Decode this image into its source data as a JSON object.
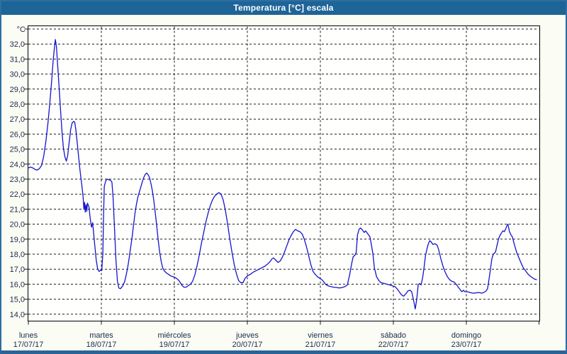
{
  "window": {
    "title": "Temperatura [°C] escala"
  },
  "colors": {
    "titlebar_bg": "#1d6497",
    "titlebar_text": "#ffffff",
    "window_bg": "#fbfcf4",
    "window_border": "#2e6da4",
    "plot_bg": "#fffffe",
    "plot_border": "#000000",
    "grid": "#1a1a1a",
    "axis_text": "#1c2b4a",
    "line": "#1414cc"
  },
  "chart_data": {
    "type": "line",
    "title": "Temperatura [°C] escala",
    "grid": "dashed",
    "legend": "none",
    "y_axis": {
      "unit": "°C",
      "unlabeled_top_gridline": 33,
      "tick_labels": [
        {
          "value": 32,
          "label": "32,0"
        },
        {
          "value": 31,
          "label": "31,0"
        },
        {
          "value": 30,
          "label": "30,0"
        },
        {
          "value": 29,
          "label": "29,0"
        },
        {
          "value": 28,
          "label": "28,0"
        },
        {
          "value": 27,
          "label": "27,0"
        },
        {
          "value": 26,
          "label": "26,0"
        },
        {
          "value": 25,
          "label": "25,0"
        },
        {
          "value": 24,
          "label": "24,0"
        },
        {
          "value": 23,
          "label": "23,0"
        },
        {
          "value": 22,
          "label": "22,0"
        },
        {
          "value": 21,
          "label": "21,0"
        },
        {
          "value": 20,
          "label": "20,0"
        },
        {
          "value": 19,
          "label": "19,0"
        },
        {
          "value": 18,
          "label": "18,0"
        },
        {
          "value": 17,
          "label": "17,0"
        },
        {
          "value": 16,
          "label": "16,0"
        },
        {
          "value": 15,
          "label": "15,0"
        },
        {
          "value": 14,
          "label": "14,0"
        }
      ],
      "range": [
        14,
        33
      ]
    },
    "x_axis": {
      "range_days": [
        0,
        7
      ],
      "days": [
        {
          "name": "lunes",
          "date": "17/07/17"
        },
        {
          "name": "martes",
          "date": "18/07/17"
        },
        {
          "name": "miércoles",
          "date": "19/07/17"
        },
        {
          "name": "jueves",
          "date": "20/07/17"
        },
        {
          "name": "viernes",
          "date": "21/07/17"
        },
        {
          "name": "sábado",
          "date": "22/07/17"
        },
        {
          "name": "domingo",
          "date": "23/07/17"
        }
      ]
    },
    "series": [
      {
        "name": "Temperatura",
        "color": "#1414cc",
        "points": [
          [
            0.0,
            23.75
          ],
          [
            0.03,
            23.8
          ],
          [
            0.06,
            23.75
          ],
          [
            0.09,
            23.65
          ],
          [
            0.12,
            23.6
          ],
          [
            0.15,
            23.7
          ],
          [
            0.18,
            23.9
          ],
          [
            0.21,
            24.5
          ],
          [
            0.24,
            25.5
          ],
          [
            0.27,
            26.8
          ],
          [
            0.3,
            28.4
          ],
          [
            0.32,
            29.6
          ],
          [
            0.34,
            30.9
          ],
          [
            0.36,
            31.9
          ],
          [
            0.37,
            32.3
          ],
          [
            0.385,
            31.8
          ],
          [
            0.4,
            30.7
          ],
          [
            0.42,
            29.2
          ],
          [
            0.44,
            27.7
          ],
          [
            0.46,
            26.2
          ],
          [
            0.48,
            25.1
          ],
          [
            0.5,
            24.5
          ],
          [
            0.52,
            24.2
          ],
          [
            0.54,
            24.6
          ],
          [
            0.56,
            25.5
          ],
          [
            0.58,
            26.3
          ],
          [
            0.6,
            26.75
          ],
          [
            0.62,
            26.85
          ],
          [
            0.635,
            26.8
          ],
          [
            0.65,
            26.3
          ],
          [
            0.67,
            25.4
          ],
          [
            0.69,
            24.4
          ],
          [
            0.71,
            23.5
          ],
          [
            0.73,
            22.7
          ],
          [
            0.75,
            21.8
          ],
          [
            0.76,
            21.0
          ],
          [
            0.77,
            21.45
          ],
          [
            0.78,
            20.8
          ],
          [
            0.79,
            21.3
          ],
          [
            0.8,
            20.85
          ],
          [
            0.81,
            21.4
          ],
          [
            0.83,
            21.15
          ],
          [
            0.85,
            20.3
          ],
          [
            0.865,
            19.8
          ],
          [
            0.88,
            20.1
          ],
          [
            0.89,
            19.6
          ],
          [
            0.91,
            18.6
          ],
          [
            0.93,
            17.6
          ],
          [
            0.95,
            17.0
          ],
          [
            0.97,
            16.85
          ],
          [
            0.99,
            16.95
          ],
          [
            1.005,
            16.9
          ],
          [
            1.02,
            18.0
          ],
          [
            1.03,
            20.5
          ],
          [
            1.04,
            22.5
          ],
          [
            1.06,
            22.9
          ],
          [
            1.08,
            23.0
          ],
          [
            1.11,
            22.95
          ],
          [
            1.13,
            22.9
          ],
          [
            1.145,
            22.8
          ],
          [
            1.16,
            21.8
          ],
          [
            1.18,
            19.8
          ],
          [
            1.2,
            17.6
          ],
          [
            1.22,
            16.2
          ],
          [
            1.24,
            15.75
          ],
          [
            1.26,
            15.7
          ],
          [
            1.28,
            15.8
          ],
          [
            1.3,
            15.95
          ],
          [
            1.32,
            16.2
          ],
          [
            1.34,
            16.6
          ],
          [
            1.36,
            17.1
          ],
          [
            1.38,
            17.7
          ],
          [
            1.4,
            18.4
          ],
          [
            1.42,
            19.1
          ],
          [
            1.44,
            19.9
          ],
          [
            1.46,
            20.7
          ],
          [
            1.48,
            21.3
          ],
          [
            1.5,
            21.8
          ],
          [
            1.53,
            22.3
          ],
          [
            1.56,
            22.8
          ],
          [
            1.58,
            23.1
          ],
          [
            1.6,
            23.3
          ],
          [
            1.62,
            23.4
          ],
          [
            1.64,
            23.3
          ],
          [
            1.66,
            23.1
          ],
          [
            1.68,
            22.7
          ],
          [
            1.7,
            22.2
          ],
          [
            1.72,
            21.5
          ],
          [
            1.74,
            20.7
          ],
          [
            1.76,
            19.8
          ],
          [
            1.78,
            18.9
          ],
          [
            1.8,
            18.1
          ],
          [
            1.82,
            17.5
          ],
          [
            1.84,
            17.1
          ],
          [
            1.86,
            16.9
          ],
          [
            1.89,
            16.75
          ],
          [
            1.92,
            16.65
          ],
          [
            1.95,
            16.55
          ],
          [
            1.98,
            16.5
          ],
          [
            2.01,
            16.45
          ],
          [
            2.04,
            16.35
          ],
          [
            2.07,
            16.2
          ],
          [
            2.1,
            15.95
          ],
          [
            2.13,
            15.8
          ],
          [
            2.16,
            15.8
          ],
          [
            2.19,
            15.9
          ],
          [
            2.22,
            16.0
          ],
          [
            2.25,
            16.2
          ],
          [
            2.28,
            16.6
          ],
          [
            2.31,
            17.2
          ],
          [
            2.34,
            17.9
          ],
          [
            2.37,
            18.7
          ],
          [
            2.4,
            19.4
          ],
          [
            2.43,
            20.1
          ],
          [
            2.46,
            20.7
          ],
          [
            2.49,
            21.2
          ],
          [
            2.52,
            21.6
          ],
          [
            2.55,
            21.85
          ],
          [
            2.58,
            22.0
          ],
          [
            2.61,
            22.1
          ],
          [
            2.64,
            22.0
          ],
          [
            2.67,
            21.6
          ],
          [
            2.7,
            20.9
          ],
          [
            2.73,
            20.0
          ],
          [
            2.76,
            19.0
          ],
          [
            2.79,
            18.1
          ],
          [
            2.82,
            17.3
          ],
          [
            2.85,
            16.7
          ],
          [
            2.88,
            16.25
          ],
          [
            2.91,
            16.1
          ],
          [
            2.94,
            16.1
          ],
          [
            2.97,
            16.4
          ],
          [
            3.0,
            16.55
          ],
          [
            3.04,
            16.65
          ],
          [
            3.08,
            16.8
          ],
          [
            3.12,
            16.9
          ],
          [
            3.16,
            17.0
          ],
          [
            3.2,
            17.1
          ],
          [
            3.24,
            17.2
          ],
          [
            3.28,
            17.35
          ],
          [
            3.31,
            17.5
          ],
          [
            3.34,
            17.7
          ],
          [
            3.36,
            17.75
          ],
          [
            3.39,
            17.6
          ],
          [
            3.42,
            17.45
          ],
          [
            3.45,
            17.55
          ],
          [
            3.48,
            17.8
          ],
          [
            3.51,
            18.15
          ],
          [
            3.54,
            18.55
          ],
          [
            3.57,
            18.95
          ],
          [
            3.6,
            19.25
          ],
          [
            3.63,
            19.5
          ],
          [
            3.66,
            19.65
          ],
          [
            3.69,
            19.55
          ],
          [
            3.72,
            19.5
          ],
          [
            3.75,
            19.35
          ],
          [
            3.78,
            19.0
          ],
          [
            3.81,
            18.5
          ],
          [
            3.84,
            17.9
          ],
          [
            3.87,
            17.3
          ],
          [
            3.9,
            16.85
          ],
          [
            3.93,
            16.65
          ],
          [
            3.96,
            16.5
          ],
          [
            3.99,
            16.4
          ],
          [
            4.02,
            16.3
          ],
          [
            4.04,
            16.2
          ],
          [
            4.07,
            16.0
          ],
          [
            4.1,
            15.9
          ],
          [
            4.14,
            15.85
          ],
          [
            4.18,
            15.8
          ],
          [
            4.22,
            15.78
          ],
          [
            4.26,
            15.75
          ],
          [
            4.3,
            15.78
          ],
          [
            4.34,
            15.85
          ],
          [
            4.37,
            15.95
          ],
          [
            4.4,
            16.6
          ],
          [
            4.43,
            17.4
          ],
          [
            4.45,
            17.85
          ],
          [
            4.47,
            17.9
          ],
          [
            4.49,
            18.1
          ],
          [
            4.51,
            19.3
          ],
          [
            4.53,
            19.65
          ],
          [
            4.55,
            19.75
          ],
          [
            4.57,
            19.65
          ],
          [
            4.6,
            19.45
          ],
          [
            4.62,
            19.55
          ],
          [
            4.65,
            19.35
          ],
          [
            4.68,
            19.15
          ],
          [
            4.7,
            18.6
          ],
          [
            4.72,
            18.0
          ],
          [
            4.74,
            17.1
          ],
          [
            4.77,
            16.5
          ],
          [
            4.8,
            16.25
          ],
          [
            4.83,
            16.1
          ],
          [
            4.87,
            16.05
          ],
          [
            4.91,
            16.0
          ],
          [
            4.95,
            15.95
          ],
          [
            4.98,
            15.9
          ],
          [
            5.02,
            15.85
          ],
          [
            5.05,
            15.7
          ],
          [
            5.08,
            15.5
          ],
          [
            5.11,
            15.3
          ],
          [
            5.14,
            15.2
          ],
          [
            5.17,
            15.35
          ],
          [
            5.2,
            15.55
          ],
          [
            5.23,
            15.6
          ],
          [
            5.25,
            15.5
          ],
          [
            5.27,
            15.1
          ],
          [
            5.29,
            14.6
          ],
          [
            5.3,
            14.35
          ],
          [
            5.32,
            15.0
          ],
          [
            5.34,
            15.95
          ],
          [
            5.36,
            16.05
          ],
          [
            5.38,
            15.95
          ],
          [
            5.4,
            16.4
          ],
          [
            5.42,
            17.1
          ],
          [
            5.44,
            17.9
          ],
          [
            5.46,
            18.35
          ],
          [
            5.48,
            18.7
          ],
          [
            5.5,
            18.9
          ],
          [
            5.52,
            18.8
          ],
          [
            5.54,
            18.65
          ],
          [
            5.57,
            18.7
          ],
          [
            5.6,
            18.6
          ],
          [
            5.62,
            18.3
          ],
          [
            5.65,
            17.7
          ],
          [
            5.68,
            17.2
          ],
          [
            5.71,
            16.8
          ],
          [
            5.74,
            16.5
          ],
          [
            5.77,
            16.3
          ],
          [
            5.8,
            16.2
          ],
          [
            5.83,
            16.15
          ],
          [
            5.86,
            16.0
          ],
          [
            5.89,
            15.8
          ],
          [
            5.92,
            15.6
          ],
          [
            5.94,
            15.5
          ],
          [
            5.96,
            15.6
          ],
          [
            5.98,
            15.5
          ],
          [
            6.01,
            15.5
          ],
          [
            6.05,
            15.45
          ],
          [
            6.09,
            15.4
          ],
          [
            6.13,
            15.42
          ],
          [
            6.17,
            15.45
          ],
          [
            6.21,
            15.4
          ],
          [
            6.24,
            15.45
          ],
          [
            6.27,
            15.55
          ],
          [
            6.29,
            15.7
          ],
          [
            6.31,
            16.3
          ],
          [
            6.33,
            17.0
          ],
          [
            6.35,
            17.7
          ],
          [
            6.37,
            18.0
          ],
          [
            6.4,
            18.15
          ],
          [
            6.42,
            18.6
          ],
          [
            6.44,
            19.0
          ],
          [
            6.46,
            19.25
          ],
          [
            6.48,
            19.4
          ],
          [
            6.5,
            19.55
          ],
          [
            6.52,
            19.5
          ],
          [
            6.54,
            19.7
          ],
          [
            6.56,
            19.95
          ],
          [
            6.57,
            20.0
          ],
          [
            6.59,
            19.5
          ],
          [
            6.61,
            19.3
          ],
          [
            6.63,
            19.15
          ],
          [
            6.66,
            18.6
          ],
          [
            6.69,
            18.1
          ],
          [
            6.72,
            17.75
          ],
          [
            6.75,
            17.4
          ],
          [
            6.78,
            17.1
          ],
          [
            6.81,
            16.9
          ],
          [
            6.84,
            16.7
          ],
          [
            6.87,
            16.55
          ],
          [
            6.9,
            16.45
          ],
          [
            6.93,
            16.35
          ],
          [
            6.96,
            16.3
          ]
        ]
      }
    ]
  }
}
